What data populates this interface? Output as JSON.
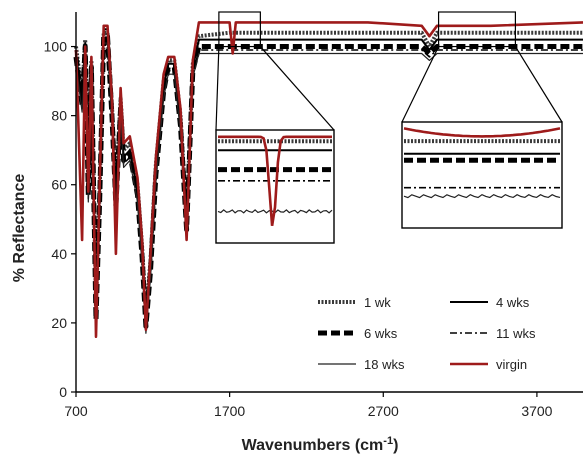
{
  "chart_data": {
    "type": "line",
    "xlabel_main": "Wavenumbers (cm",
    "xlabel_sup": "-1",
    "xlabel_end": ")",
    "ylabel": "% Reflectance",
    "xlim": [
      700,
      4000
    ],
    "ylim": [
      0,
      110
    ],
    "xticks": [
      700,
      1700,
      2700,
      3700
    ],
    "yticks": [
      0,
      20,
      40,
      60,
      80,
      100
    ],
    "grid": false,
    "legend_position": "bottom-right",
    "series": [
      {
        "name": "1 wk",
        "color": "#3a3a3a",
        "style": "dotted-thick",
        "points": [
          [
            700,
            100
          ],
          [
            740,
            86
          ],
          [
            760,
            102
          ],
          [
            780,
            60
          ],
          [
            800,
            96
          ],
          [
            830,
            25
          ],
          [
            855,
            60
          ],
          [
            880,
            104
          ],
          [
            905,
            104
          ],
          [
            935,
            82
          ],
          [
            960,
            58
          ],
          [
            990,
            85
          ],
          [
            1010,
            70
          ],
          [
            1050,
            72
          ],
          [
            1100,
            60
          ],
          [
            1130,
            42
          ],
          [
            1155,
            22
          ],
          [
            1185,
            38
          ],
          [
            1220,
            66
          ],
          [
            1270,
            90
          ],
          [
            1300,
            96
          ],
          [
            1340,
            96
          ],
          [
            1380,
            80
          ],
          [
            1420,
            50
          ],
          [
            1460,
            95
          ],
          [
            1500,
            103
          ],
          [
            1700,
            104
          ],
          [
            2000,
            104
          ],
          [
            2300,
            104
          ],
          [
            2600,
            104
          ],
          [
            2950,
            104
          ],
          [
            3000,
            100
          ],
          [
            3050,
            104
          ],
          [
            3400,
            104
          ],
          [
            4000,
            104
          ]
        ]
      },
      {
        "name": "4 wks",
        "color": "#000000",
        "style": "solid",
        "points": [
          [
            700,
            98
          ],
          [
            740,
            84
          ],
          [
            760,
            101
          ],
          [
            780,
            58
          ],
          [
            800,
            95
          ],
          [
            830,
            22
          ],
          [
            855,
            58
          ],
          [
            880,
            105
          ],
          [
            905,
            105
          ],
          [
            935,
            80
          ],
          [
            960,
            55
          ],
          [
            990,
            83
          ],
          [
            1010,
            68
          ],
          [
            1050,
            70
          ],
          [
            1100,
            58
          ],
          [
            1130,
            40
          ],
          [
            1155,
            20
          ],
          [
            1185,
            36
          ],
          [
            1220,
            64
          ],
          [
            1270,
            88
          ],
          [
            1300,
            95
          ],
          [
            1340,
            95
          ],
          [
            1380,
            78
          ],
          [
            1420,
            48
          ],
          [
            1460,
            94
          ],
          [
            1500,
            102
          ],
          [
            1700,
            102
          ],
          [
            2000,
            102
          ],
          [
            2300,
            102
          ],
          [
            2600,
            102
          ],
          [
            2950,
            102
          ],
          [
            3000,
            99
          ],
          [
            3050,
            102
          ],
          [
            3400,
            102
          ],
          [
            4000,
            102
          ]
        ]
      },
      {
        "name": "6 wks",
        "color": "#000000",
        "style": "dashed-thick",
        "points": [
          [
            700,
            97
          ],
          [
            740,
            83
          ],
          [
            760,
            100
          ],
          [
            780,
            57
          ],
          [
            800,
            94
          ],
          [
            830,
            21
          ],
          [
            855,
            57
          ],
          [
            880,
            103
          ],
          [
            905,
            103
          ],
          [
            935,
            79
          ],
          [
            960,
            54
          ],
          [
            990,
            82
          ],
          [
            1010,
            67
          ],
          [
            1050,
            69
          ],
          [
            1100,
            57
          ],
          [
            1130,
            39
          ],
          [
            1155,
            19
          ],
          [
            1185,
            35
          ],
          [
            1220,
            63
          ],
          [
            1270,
            87
          ],
          [
            1300,
            94
          ],
          [
            1340,
            94
          ],
          [
            1380,
            77
          ],
          [
            1420,
            47
          ],
          [
            1460,
            93
          ],
          [
            1500,
            100
          ],
          [
            1700,
            100
          ],
          [
            2000,
            100
          ],
          [
            2300,
            100
          ],
          [
            2600,
            100
          ],
          [
            2950,
            100
          ],
          [
            3000,
            98
          ],
          [
            3050,
            100
          ],
          [
            3400,
            100
          ],
          [
            4000,
            100
          ]
        ]
      },
      {
        "name": "11 wks",
        "color": "#000000",
        "style": "dashdot",
        "points": [
          [
            700,
            96
          ],
          [
            740,
            82
          ],
          [
            760,
            99
          ],
          [
            780,
            56
          ],
          [
            800,
            93
          ],
          [
            830,
            20
          ],
          [
            855,
            56
          ],
          [
            880,
            102
          ],
          [
            905,
            102
          ],
          [
            935,
            78
          ],
          [
            960,
            53
          ],
          [
            990,
            81
          ],
          [
            1010,
            66
          ],
          [
            1050,
            68
          ],
          [
            1100,
            56
          ],
          [
            1130,
            38
          ],
          [
            1155,
            18
          ],
          [
            1185,
            34
          ],
          [
            1220,
            62
          ],
          [
            1270,
            86
          ],
          [
            1300,
            93
          ],
          [
            1340,
            93
          ],
          [
            1380,
            76
          ],
          [
            1420,
            46
          ],
          [
            1460,
            92
          ],
          [
            1500,
            99
          ],
          [
            1700,
            99
          ],
          [
            2000,
            99
          ],
          [
            2300,
            99
          ],
          [
            2600,
            99
          ],
          [
            2950,
            99
          ],
          [
            3000,
            97
          ],
          [
            3050,
            99
          ],
          [
            3400,
            99
          ],
          [
            4000,
            99
          ]
        ]
      },
      {
        "name": "18 wks",
        "color": "#222222",
        "style": "thin",
        "points": [
          [
            700,
            95
          ],
          [
            740,
            81
          ],
          [
            760,
            98
          ],
          [
            780,
            55
          ],
          [
            800,
            92
          ],
          [
            830,
            19
          ],
          [
            855,
            55
          ],
          [
            880,
            101
          ],
          [
            905,
            101
          ],
          [
            935,
            77
          ],
          [
            960,
            52
          ],
          [
            990,
            80
          ],
          [
            1010,
            65
          ],
          [
            1050,
            67
          ],
          [
            1100,
            55
          ],
          [
            1130,
            37
          ],
          [
            1155,
            17
          ],
          [
            1185,
            33
          ],
          [
            1220,
            61
          ],
          [
            1270,
            85
          ],
          [
            1300,
            92
          ],
          [
            1340,
            92
          ],
          [
            1380,
            75
          ],
          [
            1420,
            45
          ],
          [
            1460,
            91
          ],
          [
            1500,
            98
          ],
          [
            1700,
            98
          ],
          [
            2000,
            98
          ],
          [
            2300,
            98
          ],
          [
            2600,
            98
          ],
          [
            2950,
            98
          ],
          [
            3000,
            96
          ],
          [
            3050,
            98
          ],
          [
            3400,
            98
          ],
          [
            4000,
            98
          ]
        ]
      },
      {
        "name": "virgin",
        "color": "#9e1b1b",
        "style": "solid-thick",
        "points": [
          [
            700,
            99
          ],
          [
            740,
            44
          ],
          [
            760,
            100
          ],
          [
            780,
            58
          ],
          [
            800,
            97
          ],
          [
            830,
            16
          ],
          [
            855,
            62
          ],
          [
            880,
            106
          ],
          [
            905,
            106
          ],
          [
            935,
            84
          ],
          [
            960,
            40
          ],
          [
            990,
            88
          ],
          [
            1010,
            72
          ],
          [
            1050,
            74
          ],
          [
            1100,
            62
          ],
          [
            1130,
            44
          ],
          [
            1155,
            18
          ],
          [
            1185,
            40
          ],
          [
            1220,
            68
          ],
          [
            1270,
            92
          ],
          [
            1300,
            97
          ],
          [
            1340,
            97
          ],
          [
            1380,
            82
          ],
          [
            1420,
            44
          ],
          [
            1460,
            96
          ],
          [
            1500,
            107
          ],
          [
            1700,
            107
          ],
          [
            1720,
            98
          ],
          [
            1740,
            107
          ],
          [
            2000,
            107
          ],
          [
            2300,
            107
          ],
          [
            2600,
            107
          ],
          [
            2950,
            106
          ],
          [
            3000,
            103
          ],
          [
            3050,
            106
          ],
          [
            3400,
            106
          ],
          [
            4000,
            107
          ]
        ]
      }
    ],
    "insets": [
      {
        "x_range": [
          1630,
          1900
        ],
        "y_range": [
          100,
          110
        ]
      },
      {
        "x_range": [
          3060,
          3560
        ],
        "y_range": [
          100,
          110
        ]
      }
    ]
  }
}
